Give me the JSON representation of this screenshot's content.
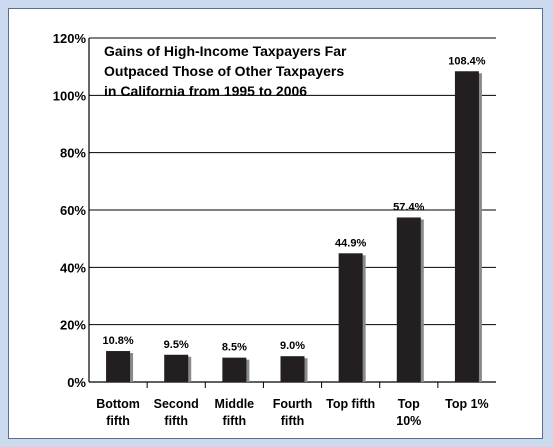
{
  "chart_data": {
    "type": "bar",
    "title": [
      "Gains of High-Income Taxpayers Far",
      "Outpaced Those of Other Taxpayers",
      "in California from 1995 to 2006"
    ],
    "categories": [
      [
        "Bottom",
        "fifth"
      ],
      [
        "Second",
        "fifth"
      ],
      [
        "Middle",
        "fifth"
      ],
      [
        "Fourth",
        "fifth"
      ],
      [
        "Top fifth"
      ],
      [
        "Top",
        "10%"
      ],
      [
        "Top 1%"
      ]
    ],
    "values": [
      10.8,
      9.5,
      8.5,
      9.0,
      44.9,
      57.4,
      108.4
    ],
    "data_labels": [
      "10.8%",
      "9.5%",
      "8.5%",
      "9.0%",
      "44.9%",
      "57.4%",
      "108.4%"
    ],
    "ylim": [
      0,
      120
    ],
    "yticks": [
      0,
      20,
      40,
      60,
      80,
      100,
      120
    ],
    "ytick_labels": [
      "0%",
      "20%",
      "40%",
      "60%",
      "80%",
      "100%",
      "120%"
    ],
    "grid": true,
    "colors": {
      "bar": "#231f20",
      "bar_shadow": "#8a8a8a",
      "grid": "#000000",
      "background": "#ccdaf0"
    }
  }
}
